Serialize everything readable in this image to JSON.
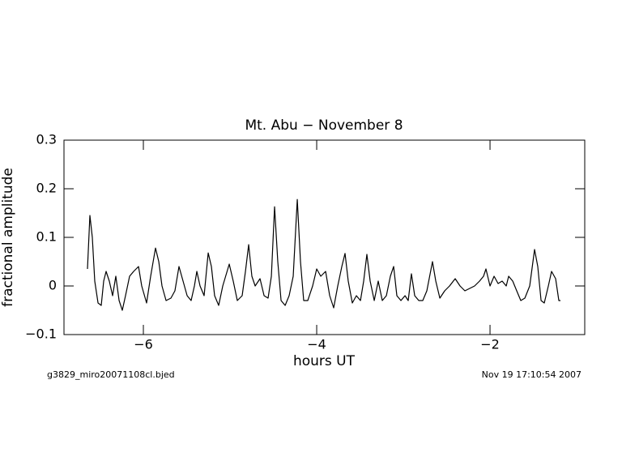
{
  "chart_data": {
    "type": "line",
    "title": "Mt. Abu − November 8",
    "x_label": "hours UT",
    "y_label": "fractional amplitude",
    "annotations": [
      "g3829_miro20071108cl.bjed",
      "Nov 19 17:10:54 2007"
    ],
    "xlim": [
      -6.916,
      -0.907
    ],
    "ylim": [
      -0.1,
      0.3
    ],
    "xticks": [
      {
        "value": -6,
        "label": "−6"
      },
      {
        "value": -4,
        "label": "−4"
      },
      {
        "value": -2,
        "label": "−2"
      }
    ],
    "yticks": [
      {
        "value": -0.1,
        "label": "−0.1"
      },
      0,
      0.1,
      0.2,
      0.3
    ],
    "grid": false,
    "x": [
      -6.645,
      -6.617,
      -6.589,
      -6.561,
      -6.523,
      -6.486,
      -6.458,
      -6.43,
      -6.393,
      -6.355,
      -6.318,
      -6.28,
      -6.243,
      -6.206,
      -6.159,
      -6.112,
      -6.056,
      -6.019,
      -5.963,
      -5.916,
      -5.86,
      -5.822,
      -5.785,
      -5.738,
      -5.682,
      -5.636,
      -5.589,
      -5.542,
      -5.495,
      -5.449,
      -5.411,
      -5.383,
      -5.346,
      -5.299,
      -5.252,
      -5.215,
      -5.178,
      -5.131,
      -5.084,
      -5.009,
      -4.963,
      -4.916,
      -4.86,
      -4.822,
      -4.785,
      -4.748,
      -4.71,
      -4.654,
      -4.607,
      -4.561,
      -4.523,
      -4.486,
      -4.449,
      -4.411,
      -4.364,
      -4.318,
      -4.271,
      -4.224,
      -4.187,
      -4.15,
      -4.103,
      -4.047,
      -4.0,
      -3.953,
      -3.897,
      -3.85,
      -3.804,
      -3.757,
      -3.71,
      -3.673,
      -3.636,
      -3.589,
      -3.542,
      -3.495,
      -3.458,
      -3.421,
      -3.383,
      -3.336,
      -3.29,
      -3.243,
      -3.196,
      -3.15,
      -3.112,
      -3.075,
      -3.028,
      -2.981,
      -2.944,
      -2.907,
      -2.869,
      -2.822,
      -2.776,
      -2.729,
      -2.664,
      -2.626,
      -2.579,
      -2.523,
      -2.467,
      -2.402,
      -2.346,
      -2.29,
      -2.234,
      -2.178,
      -2.121,
      -2.075,
      -2.047,
      -2.0,
      -1.953,
      -1.907,
      -1.86,
      -1.813,
      -1.785,
      -1.738,
      -1.692,
      -1.645,
      -1.598,
      -1.542,
      -1.486,
      -1.449,
      -1.411,
      -1.374,
      -1.327,
      -1.29,
      -1.243,
      -1.206,
      -1.187
    ],
    "series": [
      {
        "color": "#000000",
        "values": [
          0.035,
          0.145,
          0.1,
          0.01,
          -0.035,
          -0.04,
          0.01,
          0.03,
          0.01,
          -0.02,
          0.02,
          -0.03,
          -0.05,
          -0.02,
          0.02,
          0.03,
          0.04,
          0.0,
          -0.035,
          0.02,
          0.078,
          0.05,
          0.0,
          -0.03,
          -0.025,
          -0.01,
          0.04,
          0.01,
          -0.02,
          -0.03,
          0.0,
          0.03,
          0.0,
          -0.02,
          0.068,
          0.04,
          -0.02,
          -0.04,
          0.0,
          0.045,
          0.01,
          -0.03,
          -0.02,
          0.03,
          0.085,
          0.02,
          0.0,
          0.015,
          -0.02,
          -0.025,
          0.02,
          0.163,
          0.05,
          -0.03,
          -0.04,
          -0.02,
          0.02,
          0.178,
          0.05,
          -0.03,
          -0.03,
          0.0,
          0.035,
          0.02,
          0.03,
          -0.02,
          -0.045,
          0.0,
          0.04,
          0.067,
          0.01,
          -0.035,
          -0.02,
          -0.03,
          0.01,
          0.065,
          0.01,
          -0.03,
          0.01,
          -0.03,
          -0.02,
          0.02,
          0.04,
          -0.02,
          -0.03,
          -0.02,
          -0.03,
          0.025,
          -0.02,
          -0.03,
          -0.03,
          -0.01,
          0.05,
          0.01,
          -0.025,
          -0.01,
          0.0,
          0.015,
          0.0,
          -0.01,
          -0.005,
          0.0,
          0.01,
          0.02,
          0.035,
          0.0,
          0.02,
          0.005,
          0.01,
          0.0,
          0.02,
          0.01,
          -0.01,
          -0.03,
          -0.025,
          0.0,
          0.075,
          0.04,
          -0.03,
          -0.035,
          0.0,
          0.03,
          0.015,
          -0.03,
          -0.03
        ]
      }
    ]
  }
}
